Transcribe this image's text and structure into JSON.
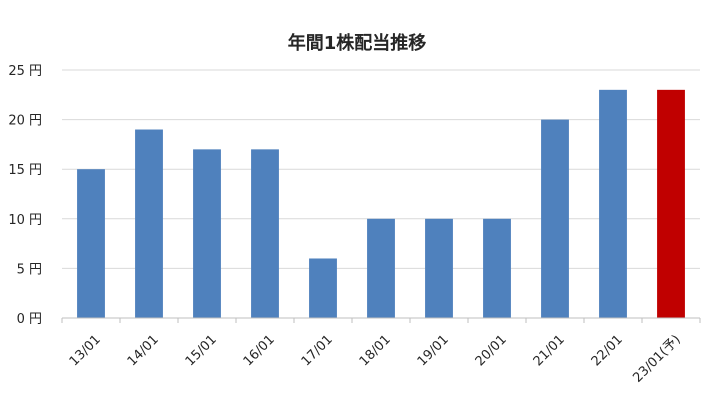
{
  "chart_data": {
    "type": "bar",
    "title": "年間1株配当推移",
    "xlabel": "",
    "ylabel": "",
    "categories": [
      "13/01",
      "14/01",
      "15/01",
      "16/01",
      "17/01",
      "18/01",
      "19/01",
      "20/01",
      "21/01",
      "22/01",
      "23/01(予)"
    ],
    "values": [
      15,
      19,
      17,
      17,
      6,
      10,
      10,
      10,
      20,
      23,
      23
    ],
    "ylim": [
      0,
      25
    ],
    "yticks": [
      0,
      5,
      10,
      15,
      20,
      25
    ],
    "ytick_labels": [
      "0 円",
      "5 円",
      "10 円",
      "15 円",
      "20 円",
      "25 円"
    ],
    "grid": true,
    "legend": "none",
    "colors": {
      "actual": "#4f81bd",
      "forecast": "#c00000",
      "grid": "#d9d9d9",
      "axis": "#bfbfbf"
    },
    "forecast_index": 10
  }
}
